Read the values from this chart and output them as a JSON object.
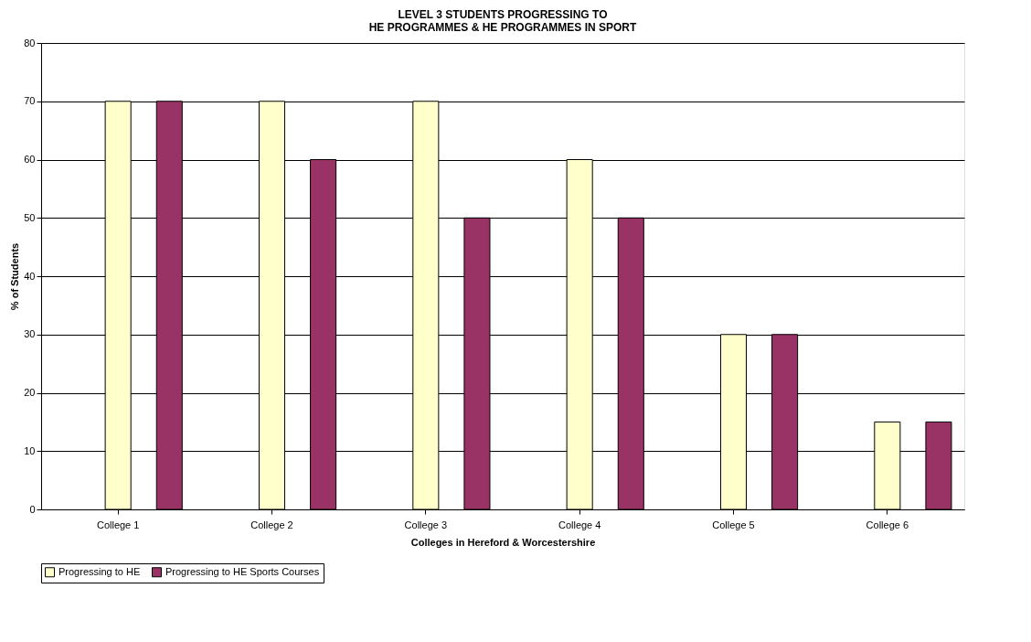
{
  "chart_data": {
    "type": "bar",
    "title": "LEVEL 3 STUDENTS PROGRESSING TO\nHE PROGRAMMES & HE PROGRAMMES IN SPORT",
    "xlabel": "Colleges in Hereford & Worcestershire",
    "ylabel": "% of Students",
    "categories": [
      "College 1",
      "College 2",
      "College 3",
      "College 4",
      "College 5",
      "College 6"
    ],
    "series": [
      {
        "name": "Progressing to HE",
        "color": "#ffffcc",
        "values": [
          70,
          70,
          70,
          60,
          30,
          15
        ]
      },
      {
        "name": "Progressing to HE Sports Courses",
        "color": "#993366",
        "values": [
          70,
          60,
          50,
          50,
          30,
          15
        ]
      }
    ],
    "ylim": [
      0,
      80
    ],
    "yticks": [
      0,
      10,
      20,
      30,
      40,
      50,
      60,
      70,
      80
    ],
    "grid": "y",
    "legend": "bottom"
  }
}
